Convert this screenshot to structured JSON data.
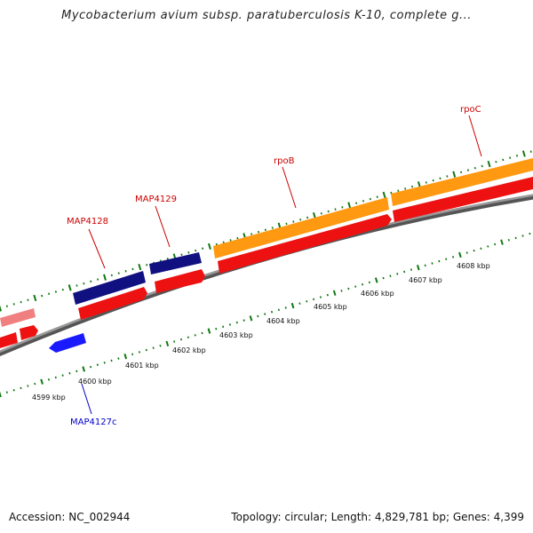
{
  "header": {
    "title": "Mycobacterium avium subsp. paratuberculosis K-10, complete g..."
  },
  "footer": {
    "accession": "Accession: NC_002944",
    "topology": "Topology: circular; Length: 4,829,781 bp; Genes: 4,399"
  },
  "genes": [
    {
      "name": "MAP4128",
      "strand": "forward",
      "color": "#cc0000"
    },
    {
      "name": "MAP4129",
      "strand": "forward",
      "color": "#cc0000"
    },
    {
      "name": "rpoB",
      "strand": "forward",
      "color": "#cc0000"
    },
    {
      "name": "rpoC",
      "strand": "forward",
      "color": "#cc0000"
    },
    {
      "name": "MAP4127c",
      "strand": "reverse",
      "color": "#0000cc"
    }
  ],
  "scale_labels": [
    "4599 kbp",
    "4600 kbp",
    "4601 kbp",
    "4602 kbp",
    "4603 kbp",
    "4604 kbp",
    "4605 kbp",
    "4606 kbp",
    "4607 kbp",
    "4608 kbp"
  ],
  "colors": {
    "backbone": "#888888",
    "cds_forward": "#ee1111",
    "cds_reverse": "#1a1aff",
    "cog_navy": "#101080",
    "cog_orange": "#ff9911",
    "cog_pink": "#f08080",
    "tick_green": "#117711"
  }
}
